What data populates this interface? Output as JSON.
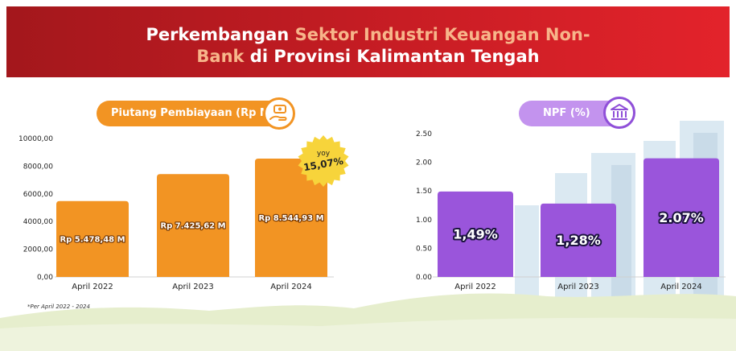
{
  "header": {
    "title_part1": "Perkembangan ",
    "title_highlight1": "Sektor Industri Keuangan Non-",
    "title_highlight2": "Bank",
    "title_part2": " di Provinsi Kalimantan Tengah"
  },
  "left_chart_label": "Piutang Pembiayaan (Rp M)",
  "right_chart_label": "NPF (%)",
  "badge": {
    "top": "yoy",
    "value": "15,07%"
  },
  "footnote": "*Per April 2022 - 2024",
  "colors": {
    "banner": "#c81d24",
    "highlight": "#f7b58a",
    "bar_left": "#f29423",
    "bar_right": "#9a55db",
    "badge": "#f7d43b"
  },
  "chart_data": [
    {
      "type": "bar",
      "categories": [
        "April 2022",
        "April 2023",
        "April 2024"
      ],
      "values": [
        5478.48,
        7425.62,
        8544.93
      ],
      "data_labels": [
        "Rp 5.478,48 M",
        "Rp 7.425,62 M",
        "Rp 8.544,93 M"
      ],
      "yticks": [
        "0,00",
        "2000,00",
        "4000,00",
        "6000,00",
        "8000,00",
        "10000,00"
      ],
      "ylim": [
        0,
        10000
      ],
      "grid": false
    },
    {
      "type": "bar",
      "categories": [
        "April 2022",
        "April 2023",
        "April 2024"
      ],
      "values": [
        1.49,
        1.28,
        2.07
      ],
      "data_labels": [
        "1,49%",
        "1,28%",
        "2.07%"
      ],
      "yticks": [
        "0.00",
        "0.50",
        "1.00",
        "1.50",
        "2.00",
        "2.50"
      ],
      "ylim": [
        0,
        2.5
      ],
      "grid": false
    }
  ]
}
